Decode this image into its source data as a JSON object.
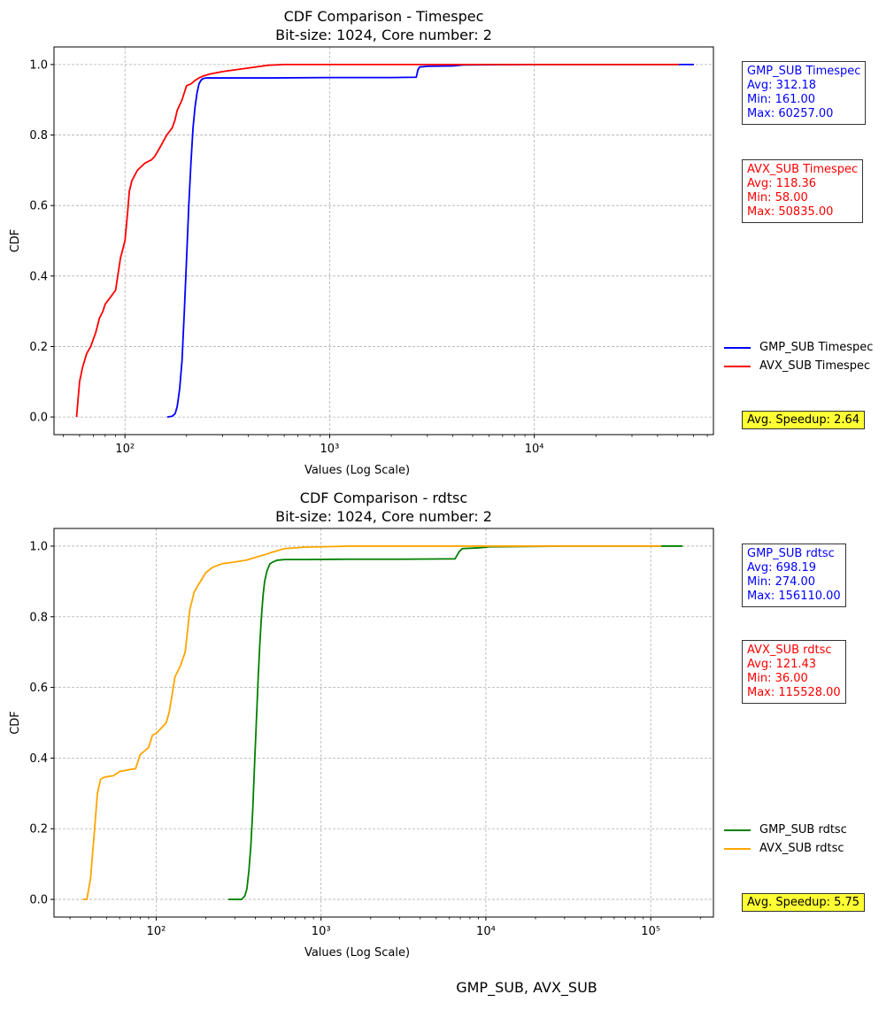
{
  "figure": {
    "footer": "GMP_SUB, AVX_SUB"
  },
  "chart_data": [
    {
      "type": "line",
      "title": "CDF Comparison - Timespec",
      "subtitle": "Bit-size: 1024, Core number: 2",
      "xlabel": "Values (Log Scale)",
      "ylabel": "CDF",
      "xscale": "log",
      "xlim": [
        45,
        75000
      ],
      "ylim": [
        -0.05,
        1.05
      ],
      "xticks": [
        100,
        1000,
        10000
      ],
      "xtick_labels": [
        "10²",
        "10³",
        "10⁴"
      ],
      "yticks": [
        0.0,
        0.2,
        0.4,
        0.6,
        0.8,
        1.0
      ],
      "ytick_labels": [
        "0.0",
        "0.2",
        "0.4",
        "0.6",
        "0.8",
        "1.0"
      ],
      "grid": true,
      "legend_position": "right",
      "series": [
        {
          "name": "GMP_SUB Timespec",
          "color": "#0000ff",
          "x": [
            161,
            170,
            176,
            180,
            185,
            190,
            195,
            200,
            205,
            210,
            215,
            220,
            225,
            230,
            235,
            240,
            250,
            270,
            300,
            500,
            1000,
            2000,
            2650,
            2700,
            2750,
            3000,
            4000,
            4500,
            10000,
            30000,
            60257
          ],
          "y": [
            0.0,
            0.002,
            0.01,
            0.03,
            0.08,
            0.16,
            0.3,
            0.45,
            0.6,
            0.72,
            0.82,
            0.88,
            0.92,
            0.945,
            0.955,
            0.96,
            0.962,
            0.962,
            0.962,
            0.962,
            0.963,
            0.963,
            0.964,
            0.985,
            0.993,
            0.995,
            0.996,
            0.999,
            1.0,
            1.0,
            1.0
          ]
        },
        {
          "name": "AVX_SUB Timespec",
          "color": "#ff0000",
          "x": [
            58,
            59,
            60,
            62,
            65,
            68,
            70,
            72,
            75,
            78,
            80,
            85,
            90,
            95,
            100,
            103,
            105,
            108,
            115,
            125,
            135,
            140,
            150,
            160,
            170,
            175,
            180,
            190,
            200,
            210,
            220,
            230,
            240,
            260,
            300,
            400,
            500,
            600,
            1000,
            5000,
            50835
          ],
          "y": [
            0.0,
            0.05,
            0.1,
            0.14,
            0.18,
            0.2,
            0.22,
            0.24,
            0.28,
            0.3,
            0.32,
            0.34,
            0.36,
            0.45,
            0.5,
            0.58,
            0.64,
            0.67,
            0.7,
            0.72,
            0.73,
            0.74,
            0.77,
            0.8,
            0.82,
            0.84,
            0.87,
            0.9,
            0.94,
            0.945,
            0.955,
            0.962,
            0.967,
            0.973,
            0.98,
            0.99,
            0.998,
            1.0,
            1.0,
            1.0,
            1.0
          ]
        }
      ],
      "stats": [
        {
          "lines": [
            "GMP_SUB Timespec",
            "Avg: 312.18",
            "Min: 161.00",
            "Max: 60257.00"
          ],
          "color": "#0000ff"
        },
        {
          "lines": [
            "AVX_SUB Timespec",
            "Avg: 118.36",
            "Min: 58.00",
            "Max: 50835.00"
          ],
          "color": "#ff0000"
        }
      ],
      "speedup": "Avg. Speedup: 2.64",
      "speedup_color": "#ffff33"
    },
    {
      "type": "line",
      "title": "CDF Comparison - rdtsc",
      "subtitle": "Bit-size: 1024, Core number: 2",
      "xlabel": "Values (Log Scale)",
      "ylabel": "CDF",
      "xscale": "log",
      "xlim": [
        24,
        240000
      ],
      "ylim": [
        -0.05,
        1.05
      ],
      "xticks": [
        100,
        1000,
        10000,
        100000
      ],
      "xtick_labels": [
        "10²",
        "10³",
        "10⁴",
        "10⁵"
      ],
      "yticks": [
        0.0,
        0.2,
        0.4,
        0.6,
        0.8,
        1.0
      ],
      "ytick_labels": [
        "0.0",
        "0.2",
        "0.4",
        "0.6",
        "0.8",
        "1.0"
      ],
      "grid": true,
      "legend_position": "right",
      "series": [
        {
          "name": "GMP_SUB rdtsc",
          "color": "#008000",
          "x": [
            274,
            300,
            330,
            345,
            355,
            365,
            375,
            385,
            395,
            405,
            415,
            425,
            435,
            445,
            455,
            470,
            490,
            510,
            540,
            600,
            800,
            1500,
            3000,
            6500,
            6900,
            7200,
            9000,
            10500,
            30000,
            100000,
            156110
          ],
          "y": [
            0.0,
            0.0,
            0.0,
            0.01,
            0.03,
            0.08,
            0.15,
            0.25,
            0.38,
            0.5,
            0.62,
            0.72,
            0.8,
            0.86,
            0.9,
            0.93,
            0.95,
            0.955,
            0.96,
            0.962,
            0.962,
            0.963,
            0.963,
            0.964,
            0.985,
            0.993,
            0.995,
            0.998,
            1.0,
            1.0,
            1.0
          ]
        },
        {
          "name": "AVX_SUB rdtsc",
          "color": "#ffa500",
          "x": [
            36,
            38,
            40,
            42,
            44,
            46,
            48,
            50,
            55,
            60,
            65,
            70,
            75,
            80,
            85,
            90,
            95,
            100,
            105,
            110,
            115,
            120,
            125,
            130,
            140,
            150,
            160,
            170,
            180,
            200,
            220,
            250,
            300,
            350,
            400,
            450,
            500,
            600,
            800,
            1500,
            10000,
            115528
          ],
          "y": [
            0.0,
            0.0,
            0.06,
            0.18,
            0.3,
            0.34,
            0.345,
            0.347,
            0.35,
            0.362,
            0.365,
            0.368,
            0.37,
            0.41,
            0.42,
            0.43,
            0.465,
            0.47,
            0.48,
            0.49,
            0.5,
            0.53,
            0.58,
            0.63,
            0.66,
            0.7,
            0.82,
            0.87,
            0.89,
            0.925,
            0.94,
            0.95,
            0.955,
            0.96,
            0.968,
            0.975,
            0.982,
            0.993,
            0.997,
            1.0,
            1.0,
            1.0
          ]
        }
      ],
      "stats": [
        {
          "lines": [
            "GMP_SUB rdtsc",
            "Avg: 698.19",
            "Min: 274.00",
            "Max: 156110.00"
          ],
          "color": "#0000ff"
        },
        {
          "lines": [
            "AVX_SUB rdtsc",
            "Avg: 121.43",
            "Min: 36.00",
            "Max: 115528.00"
          ],
          "color": "#ff0000"
        }
      ],
      "speedup": "Avg. Speedup: 5.75",
      "speedup_color": "#ffff33"
    }
  ]
}
